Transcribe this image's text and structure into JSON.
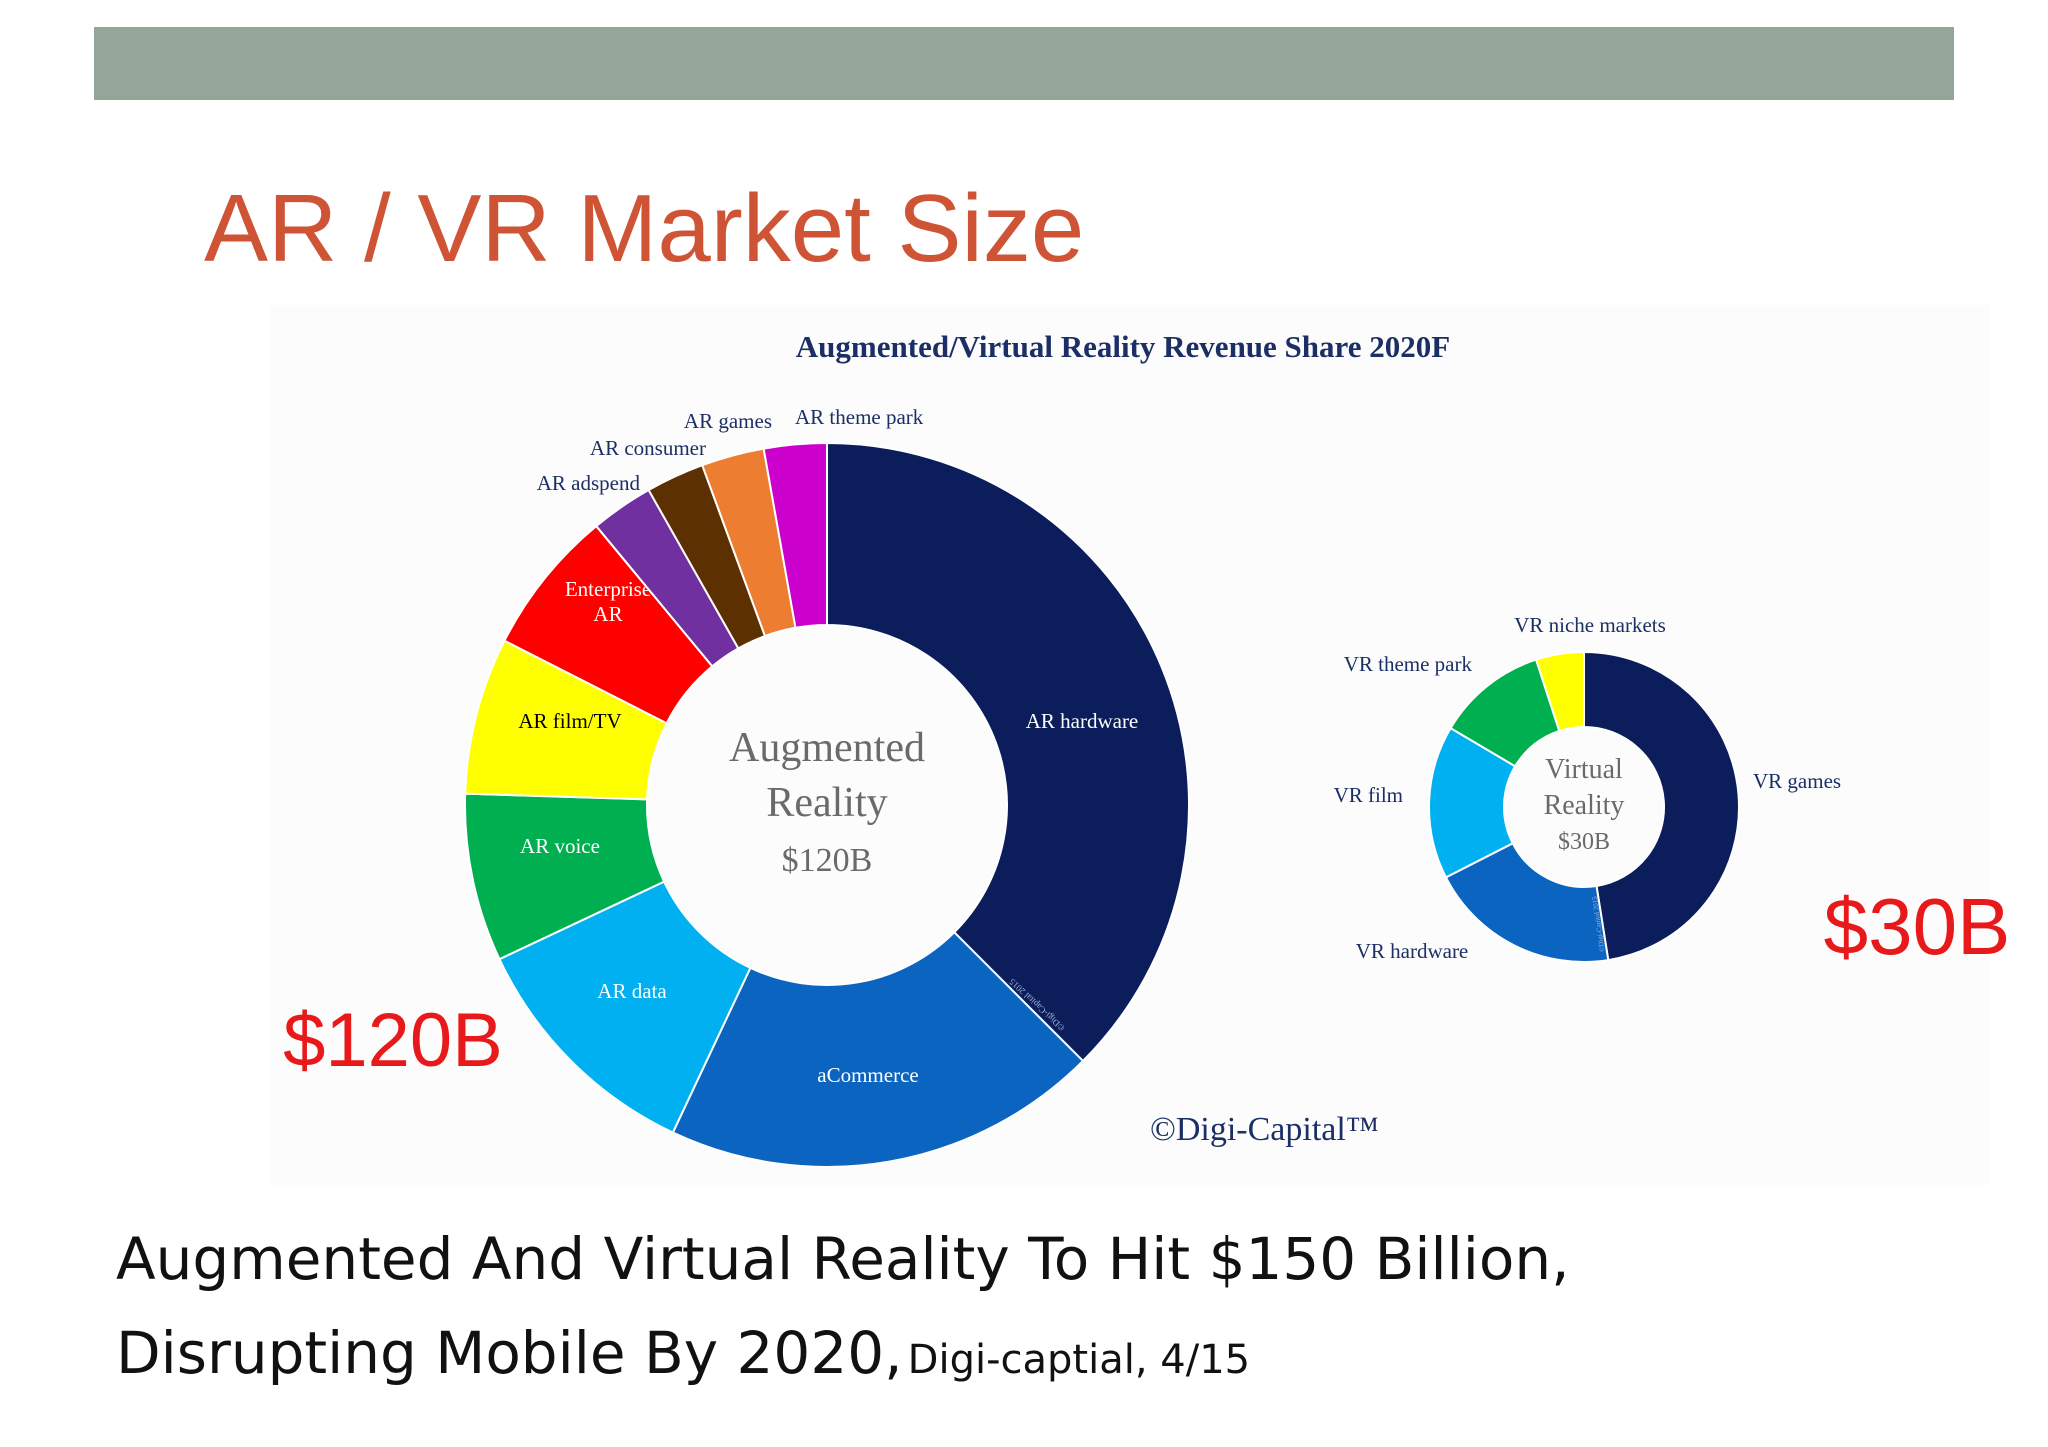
{
  "slide": {
    "title": "AR / VR Market Size",
    "headline_line1": "Augmented And Virtual Reality To Hit $150 Billion,",
    "headline_line2": "Disrupting Mobile By 2020,",
    "source": "Digi-captial, 4/15"
  },
  "chart_data": [
    {
      "type": "pie",
      "title": "Augmented/Virtual Reality Revenue Share 2020F",
      "center_label": [
        "Augmented",
        "Reality",
        "$120B"
      ],
      "total_label": "$120B",
      "watermark": "©Digi-Capital 2015",
      "credit": "©Digi-Capital™",
      "slices": [
        {
          "label": "AR hardware",
          "value": 37.5,
          "color": "#0b1d5a"
        },
        {
          "label": "aCommerce",
          "value": 19.5,
          "color": "#0a64c0"
        },
        {
          "label": "AR data",
          "value": 11.0,
          "color": "#00b0f0"
        },
        {
          "label": "AR voice",
          "value": 7.5,
          "color": "#00b050"
        },
        {
          "label": "AR film/TV",
          "value": 7.0,
          "color": "#ffff00"
        },
        {
          "label": "Enterprise AR",
          "value": 6.5,
          "color": "#ff0000"
        },
        {
          "label": "AR adspend",
          "value": 2.8,
          "color": "#7030a0"
        },
        {
          "label": "AR consumer",
          "value": 2.6,
          "color": "#5c3000"
        },
        {
          "label": "AR games",
          "value": 2.8,
          "color": "#ed7d31"
        },
        {
          "label": "AR theme park",
          "value": 2.8,
          "color": "#cc00cc"
        }
      ]
    },
    {
      "type": "pie",
      "center_label": [
        "Virtual",
        "Reality",
        "$30B"
      ],
      "total_label": "$30B",
      "watermark": "©Digi-Capital 2015",
      "slices": [
        {
          "label": "VR games",
          "value": 47.5,
          "color": "#0b1d5a"
        },
        {
          "label": "VR hardware",
          "value": 20.0,
          "color": "#0a64c0"
        },
        {
          "label": "VR film",
          "value": 16.0,
          "color": "#00b0f0"
        },
        {
          "label": "VR theme park",
          "value": 11.5,
          "color": "#00b050"
        },
        {
          "label": "VR niche markets",
          "value": 5.0,
          "color": "#ffff00"
        }
      ]
    }
  ]
}
